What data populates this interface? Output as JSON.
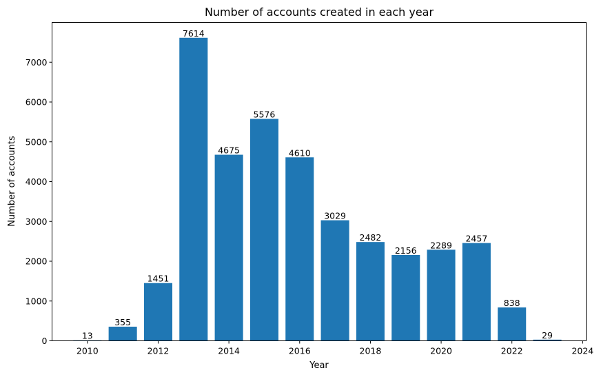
{
  "chart_data": {
    "type": "bar",
    "title": "Number of accounts created in each year",
    "xlabel": "Year",
    "ylabel": "Number of accounts",
    "x": [
      2010,
      2011,
      2012,
      2013,
      2014,
      2015,
      2016,
      2017,
      2018,
      2019,
      2020,
      2021,
      2022,
      2023
    ],
    "values": [
      13,
      355,
      1451,
      7614,
      4675,
      5576,
      4610,
      3029,
      2482,
      2156,
      2289,
      2457,
      838,
      29
    ],
    "data_labels": [
      "13",
      "355",
      "1451",
      "7614",
      "4675",
      "5576",
      "4610",
      "3029",
      "2482",
      "2156",
      "2289",
      "2457",
      "838",
      "29"
    ],
    "xlim": [
      2009.0,
      2024.1
    ],
    "ylim": [
      0,
      8000
    ],
    "xticks": [
      2010,
      2012,
      2014,
      2016,
      2018,
      2020,
      2022,
      2024
    ],
    "xtick_labels": [
      "2010",
      "2012",
      "2014",
      "2016",
      "2018",
      "2020",
      "2022",
      "2024"
    ],
    "yticks": [
      0,
      1000,
      2000,
      3000,
      4000,
      5000,
      6000,
      7000
    ],
    "ytick_labels": [
      "0",
      "1000",
      "2000",
      "3000",
      "4000",
      "5000",
      "6000",
      "7000"
    ],
    "bar_color": "#1f77b4",
    "grid": false,
    "legend": "none"
  }
}
